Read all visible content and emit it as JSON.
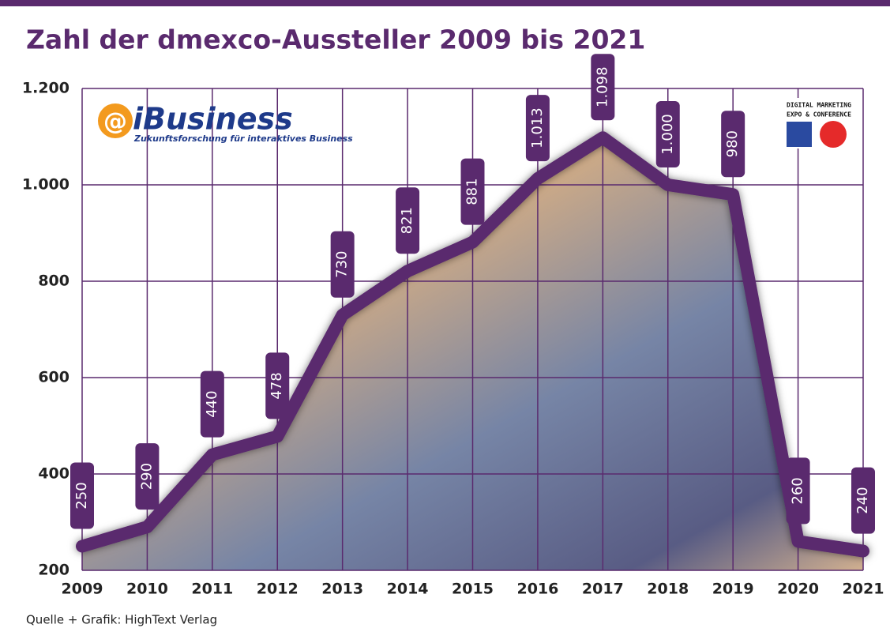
{
  "chart_data": {
    "type": "line",
    "title": "Zahl der dmexco-Aussteller 2009 bis 2021",
    "categories": [
      "2009",
      "2010",
      "2011",
      "2012",
      "2013",
      "2014",
      "2015",
      "2016",
      "2017",
      "2018",
      "2019",
      "2020",
      "2021"
    ],
    "values": [
      250,
      290,
      440,
      478,
      730,
      821,
      881,
      1013,
      1098,
      1000,
      980,
      260,
      240
    ],
    "value_labels": [
      "250",
      "290",
      "440",
      "478",
      "730",
      "821",
      "881",
      "1.013",
      "1.098",
      "1.000",
      "980",
      "260",
      "240"
    ],
    "color": "#5a2a6e",
    "ylim": [
      200,
      1200
    ],
    "yticks": [
      200,
      400,
      600,
      800,
      {
        "value": 1000,
        "label": "1.000"
      },
      {
        "value": 1200,
        "label": "1.200"
      }
    ],
    "grid": true,
    "logos": {
      "ibusiness": "iBusiness",
      "ibusiness_tagline": "Zukunftsforschung für interaktives Business",
      "dmexco_line1": "DIGITAL MARKETING",
      "dmexco_line2": "EXPO & CONFERENCE"
    },
    "source": "Quelle + Grafik: HighText Verlag"
  }
}
